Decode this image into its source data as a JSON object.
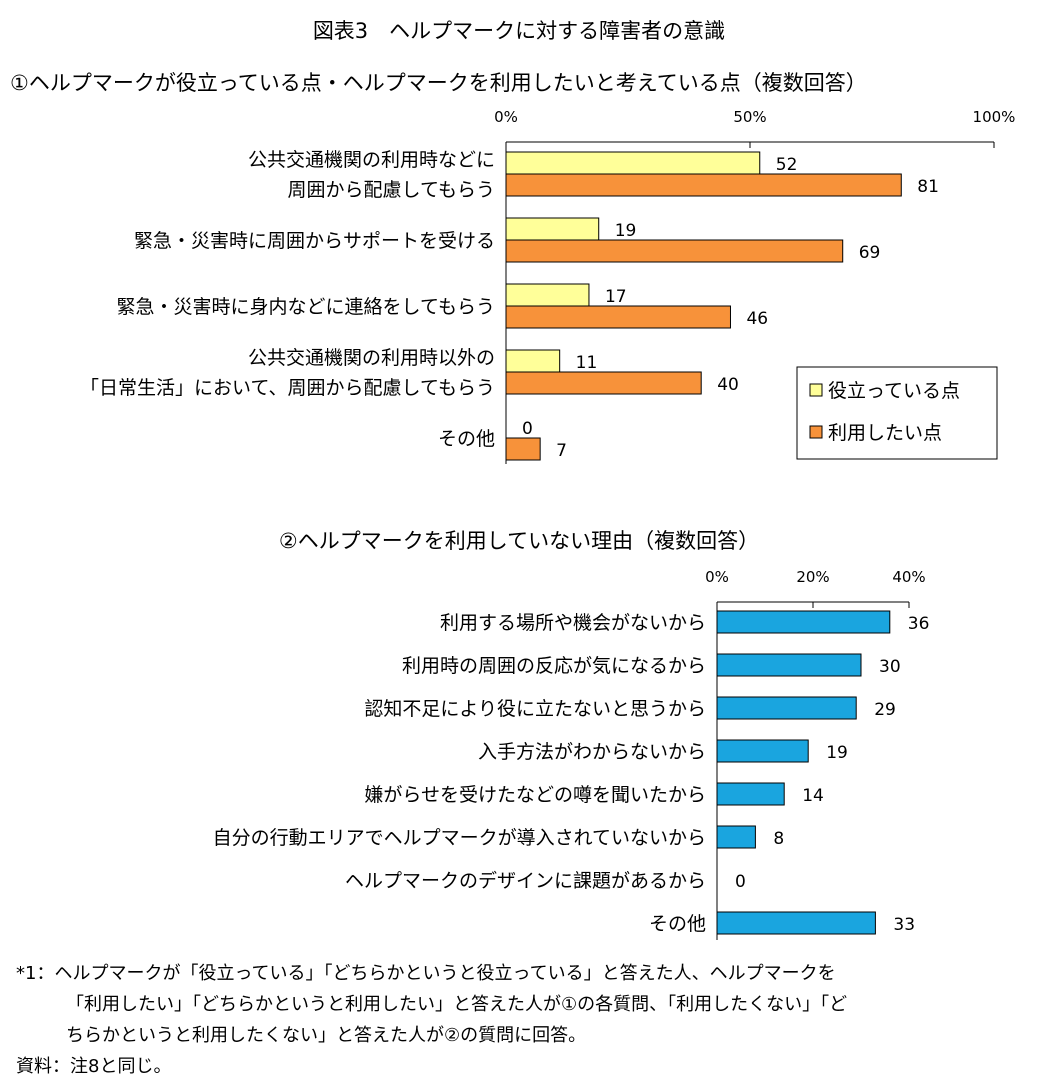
{
  "figure_title": "図表3　ヘルプマークに対する障害者の意識",
  "chart_data": [
    {
      "type": "bar",
      "orientation": "horizontal",
      "title": "①ヘルプマークが役立っている点・ヘルプマークを利用したいと考えている点（複数回答）",
      "categories": [
        [
          "公共交通機関の利用時などに",
          "周囲から配慮してもらう"
        ],
        [
          "緊急・災害時に周囲からサポートを受ける"
        ],
        [
          "緊急・災害時に身内などに連絡をしてもらう"
        ],
        [
          "公共交通機関の利用時以外の",
          "「日常生活」において、周囲から配慮してもらう"
        ],
        [
          "その他"
        ]
      ],
      "series": [
        {
          "name": "役立っている点",
          "color": "#ffff99",
          "values": [
            52,
            19,
            17,
            11,
            0
          ]
        },
        {
          "name": "利用したい点",
          "color": "#f7923a",
          "values": [
            81,
            69,
            46,
            40,
            7
          ]
        }
      ],
      "ticks": [
        "0%",
        "50%",
        "100%"
      ],
      "xlim": [
        0,
        100
      ],
      "legend": "bottom-right"
    },
    {
      "type": "bar",
      "orientation": "horizontal",
      "title": "②ヘルプマークを利用していない理由（複数回答）",
      "categories": [
        "利用する場所や機会がないから",
        "利用時の周囲の反応が気になるから",
        "認知不足により役に立たないと思うから",
        "入手方法がわからないから",
        "嫌がらせを受けたなどの噂を聞いたから",
        "自分の行動エリアでヘルプマークが導入されていないから",
        "ヘルプマークのデザインに課題があるから",
        "その他"
      ],
      "series": [
        {
          "name": "",
          "color": "#1aa5df",
          "values": [
            36,
            30,
            29,
            19,
            14,
            8,
            0,
            33
          ]
        }
      ],
      "ticks": [
        "0%",
        "20%",
        "40%"
      ],
      "xlim": [
        0,
        40
      ]
    }
  ],
  "notes": {
    "line1": "*1：ヘルプマークが「役立っている」「どちらかというと役立っている」と答えた人、ヘルプマークを",
    "line2": "「利用したい」「どちらかというと利用したい」と答えた人が①の各質問、「利用したくない」「ど",
    "line3": "ちらかというと利用したくない」と答えた人が②の質問に回答。",
    "source": "資料：注8と同じ。"
  }
}
